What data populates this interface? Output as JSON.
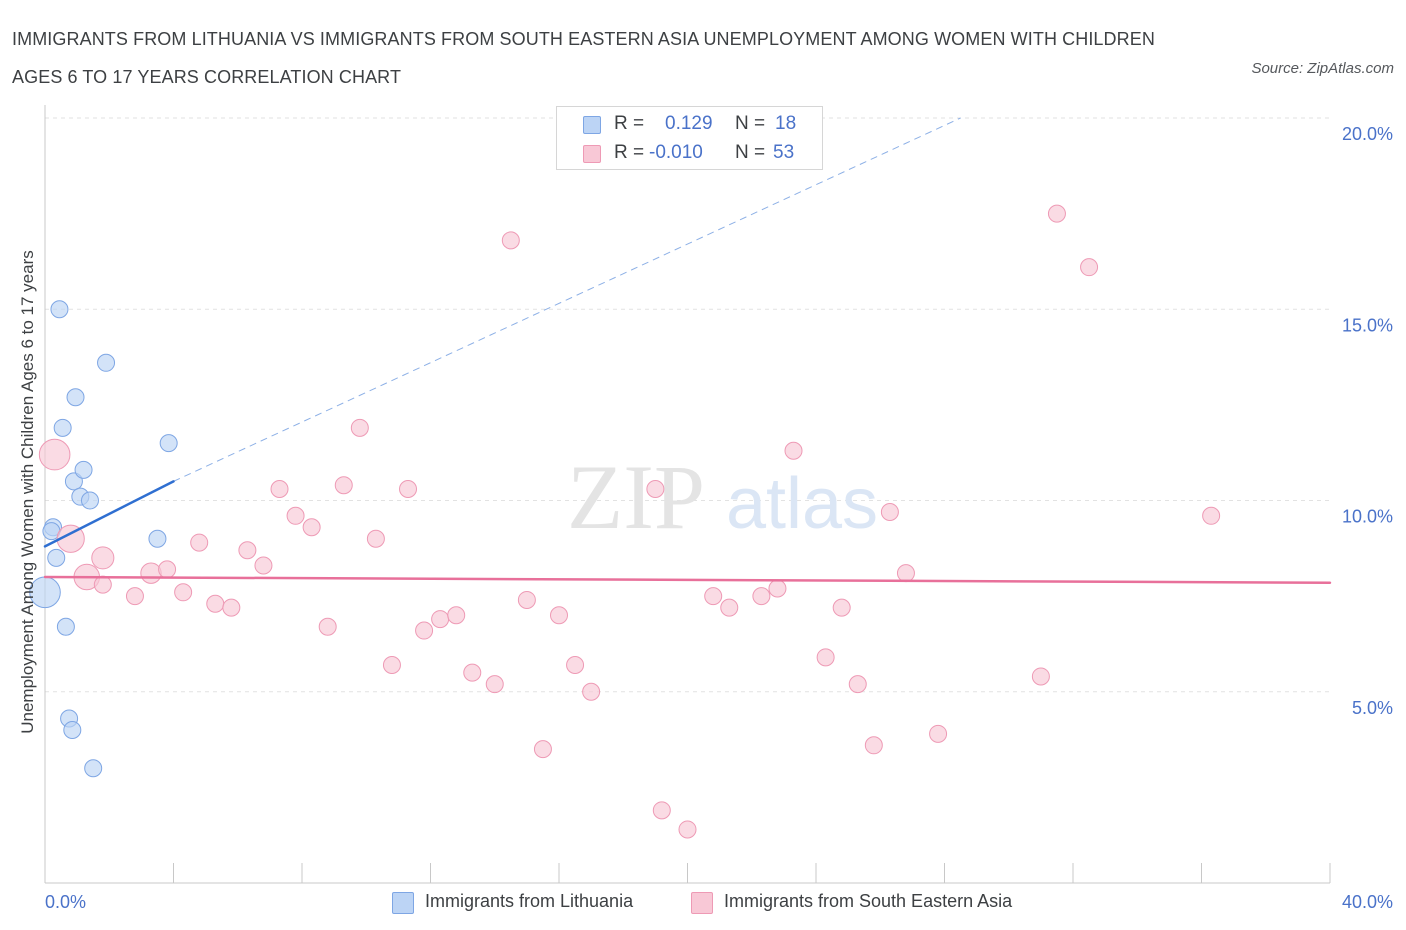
{
  "title_line1": "IMMIGRANTS FROM LITHUANIA VS IMMIGRANTS FROM SOUTH EASTERN ASIA UNEMPLOYMENT AMONG WOMEN WITH CHILDREN",
  "title_line2": "AGES 6 TO 17 YEARS CORRELATION CHART",
  "source": "Source: ZipAtlas.com",
  "watermark": {
    "zip": "ZIP",
    "atlas": "atlas"
  },
  "colors": {
    "blue_fill": "#bcd4f5",
    "blue_stroke": "#7ea6e4",
    "blue_line": "#2f6fd1",
    "pink_fill": "#f8c8d6",
    "pink_stroke": "#ee9ab5",
    "pink_line": "#e8709a",
    "tick_text": "#4a72c9",
    "grid": "#e2e2e2"
  },
  "legend": {
    "rows": [
      {
        "r_label": "R =",
        "r_value": "0.129",
        "n_label": "N =",
        "n_value": "18",
        "series": "blue"
      },
      {
        "r_label": "R =",
        "r_value": "-0.010",
        "n_label": "N =",
        "n_value": "53",
        "series": "pink"
      }
    ]
  },
  "chart_data": {
    "type": "scatter",
    "title": "IMMIGRANTS FROM LITHUANIA VS IMMIGRANTS FROM SOUTH EASTERN ASIA UNEMPLOYMENT AMONG WOMEN WITH CHILDREN AGES 6 TO 17 YEARS CORRELATION CHART",
    "xlabel": "",
    "ylabel": "Unemployment Among Women with Children Ages 6 to 17 years",
    "xlim": [
      0,
      40
    ],
    "ylim": [
      0,
      20
    ],
    "x_tick_labels": [
      "0.0%",
      "40.0%"
    ],
    "y_ticks": [
      5,
      10,
      15,
      20
    ],
    "y_tick_labels": [
      "5.0%",
      "10.0%",
      "15.0%",
      "20.0%"
    ],
    "series": [
      {
        "name": "Immigrants from Lithuania",
        "color": "blue",
        "R": 0.129,
        "N": 18,
        "trend": {
          "x0": 0.0,
          "y0": 8.8,
          "x1": 4.0,
          "y1": 10.5,
          "dash_to_x": 28.5,
          "dash_to_y": 20.0
        },
        "points": [
          {
            "x": 0.0,
            "y": 7.6,
            "s": 1.8
          },
          {
            "x": 0.25,
            "y": 9.3,
            "s": 1
          },
          {
            "x": 0.35,
            "y": 8.5,
            "s": 1
          },
          {
            "x": 0.45,
            "y": 15.0,
            "s": 1
          },
          {
            "x": 0.55,
            "y": 11.9,
            "s": 1
          },
          {
            "x": 0.65,
            "y": 6.7,
            "s": 1
          },
          {
            "x": 0.75,
            "y": 4.3,
            "s": 1
          },
          {
            "x": 0.85,
            "y": 4.0,
            "s": 1
          },
          {
            "x": 0.9,
            "y": 10.5,
            "s": 1
          },
          {
            "x": 0.95,
            "y": 12.7,
            "s": 1
          },
          {
            "x": 1.1,
            "y": 10.1,
            "s": 1
          },
          {
            "x": 1.2,
            "y": 10.8,
            "s": 1
          },
          {
            "x": 1.4,
            "y": 10.0,
            "s": 1
          },
          {
            "x": 1.5,
            "y": 3.0,
            "s": 1
          },
          {
            "x": 1.9,
            "y": 13.6,
            "s": 1
          },
          {
            "x": 3.5,
            "y": 9.0,
            "s": 1
          },
          {
            "x": 3.85,
            "y": 11.5,
            "s": 1
          },
          {
            "x": 0.2,
            "y": 9.2,
            "s": 1
          }
        ]
      },
      {
        "name": "Immigrants from South Eastern Asia",
        "color": "pink",
        "R": -0.01,
        "N": 53,
        "trend": {
          "x0": 0.0,
          "y0": 8.0,
          "x1": 40.0,
          "y1": 7.85
        },
        "points": [
          {
            "x": 0.3,
            "y": 11.2,
            "s": 1.8
          },
          {
            "x": 0.8,
            "y": 9.0,
            "s": 1.6
          },
          {
            "x": 1.3,
            "y": 8.0,
            "s": 1.5
          },
          {
            "x": 1.8,
            "y": 7.8,
            "s": 1
          },
          {
            "x": 1.8,
            "y": 8.5,
            "s": 1.3
          },
          {
            "x": 2.8,
            "y": 7.5,
            "s": 1
          },
          {
            "x": 3.3,
            "y": 8.1,
            "s": 1.2
          },
          {
            "x": 3.8,
            "y": 8.2,
            "s": 1
          },
          {
            "x": 4.3,
            "y": 7.6,
            "s": 1
          },
          {
            "x": 4.8,
            "y": 8.9,
            "s": 1
          },
          {
            "x": 5.3,
            "y": 7.3,
            "s": 1
          },
          {
            "x": 5.8,
            "y": 7.2,
            "s": 1
          },
          {
            "x": 6.3,
            "y": 8.7,
            "s": 1
          },
          {
            "x": 6.8,
            "y": 8.3,
            "s": 1
          },
          {
            "x": 7.3,
            "y": 10.3,
            "s": 1
          },
          {
            "x": 7.8,
            "y": 9.6,
            "s": 1
          },
          {
            "x": 8.3,
            "y": 9.3,
            "s": 1
          },
          {
            "x": 8.8,
            "y": 6.7,
            "s": 1
          },
          {
            "x": 9.3,
            "y": 10.4,
            "s": 1
          },
          {
            "x": 9.8,
            "y": 11.9,
            "s": 1
          },
          {
            "x": 10.3,
            "y": 9.0,
            "s": 1
          },
          {
            "x": 10.8,
            "y": 5.7,
            "s": 1
          },
          {
            "x": 11.3,
            "y": 10.3,
            "s": 1
          },
          {
            "x": 11.8,
            "y": 6.6,
            "s": 1
          },
          {
            "x": 12.3,
            "y": 6.9,
            "s": 1
          },
          {
            "x": 12.8,
            "y": 7.0,
            "s": 1
          },
          {
            "x": 13.3,
            "y": 5.5,
            "s": 1
          },
          {
            "x": 14.0,
            "y": 5.2,
            "s": 1
          },
          {
            "x": 14.5,
            "y": 16.8,
            "s": 1
          },
          {
            "x": 15.0,
            "y": 7.4,
            "s": 1
          },
          {
            "x": 15.5,
            "y": 3.5,
            "s": 1
          },
          {
            "x": 16.0,
            "y": 7.0,
            "s": 1
          },
          {
            "x": 16.5,
            "y": 5.7,
            "s": 1
          },
          {
            "x": 17.0,
            "y": 5.0,
            "s": 1
          },
          {
            "x": 19.0,
            "y": 10.3,
            "s": 1
          },
          {
            "x": 19.2,
            "y": 1.9,
            "s": 1
          },
          {
            "x": 20.0,
            "y": 1.4,
            "s": 1
          },
          {
            "x": 20.8,
            "y": 7.5,
            "s": 1
          },
          {
            "x": 21.3,
            "y": 7.2,
            "s": 1
          },
          {
            "x": 22.3,
            "y": 7.5,
            "s": 1
          },
          {
            "x": 22.8,
            "y": 7.7,
            "s": 1
          },
          {
            "x": 23.3,
            "y": 11.3,
            "s": 1
          },
          {
            "x": 24.3,
            "y": 5.9,
            "s": 1
          },
          {
            "x": 24.8,
            "y": 7.2,
            "s": 1
          },
          {
            "x": 25.3,
            "y": 5.2,
            "s": 1
          },
          {
            "x": 25.8,
            "y": 3.6,
            "s": 1
          },
          {
            "x": 26.3,
            "y": 9.7,
            "s": 1
          },
          {
            "x": 26.8,
            "y": 8.1,
            "s": 1
          },
          {
            "x": 27.8,
            "y": 3.9,
            "s": 1
          },
          {
            "x": 31.0,
            "y": 5.4,
            "s": 1
          },
          {
            "x": 31.5,
            "y": 17.5,
            "s": 1
          },
          {
            "x": 32.5,
            "y": 16.1,
            "s": 1
          },
          {
            "x": 36.3,
            "y": 9.6,
            "s": 1
          }
        ]
      }
    ],
    "legend_position": "top-center"
  },
  "bottom_legend": [
    {
      "label": "Immigrants from Lithuania",
      "series": "blue"
    },
    {
      "label": "Immigrants from South Eastern Asia",
      "series": "pink"
    }
  ]
}
